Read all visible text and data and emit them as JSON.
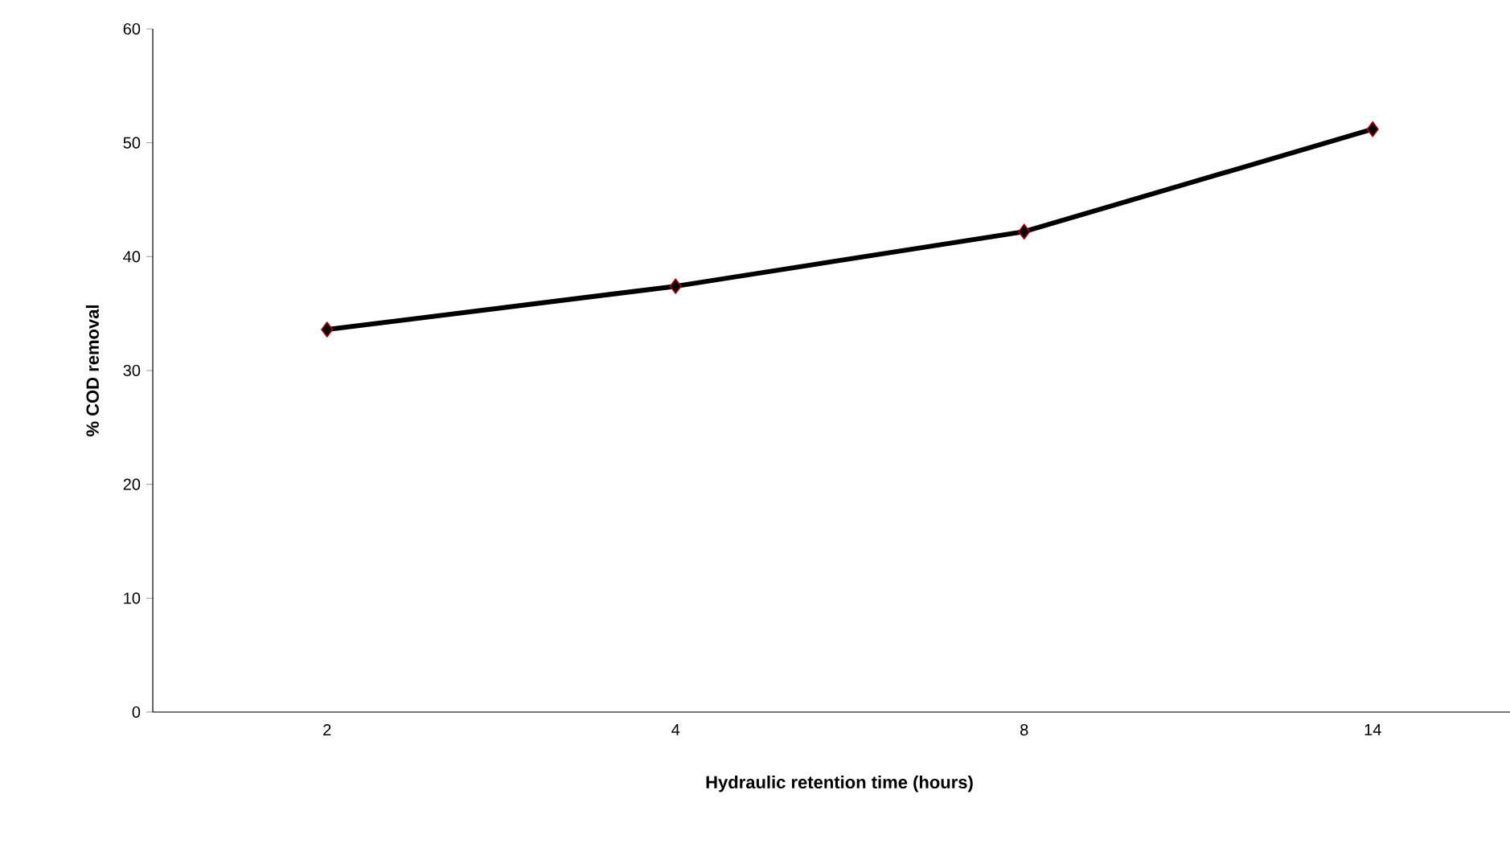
{
  "chart_data": {
    "type": "line",
    "xlabel": "Hydraulic retention time (hours)",
    "ylabel": "% COD removal",
    "categories": [
      "2",
      "4",
      "8",
      "14"
    ],
    "series": [
      {
        "color": "#000000",
        "values": [
          33.6,
          37.4,
          42.2,
          51.2
        ]
      }
    ],
    "ylim": [
      0,
      60
    ],
    "yticks": [
      0,
      10,
      20,
      30,
      40,
      50,
      60
    ],
    "marker": "diamond",
    "line_style": "solid"
  }
}
